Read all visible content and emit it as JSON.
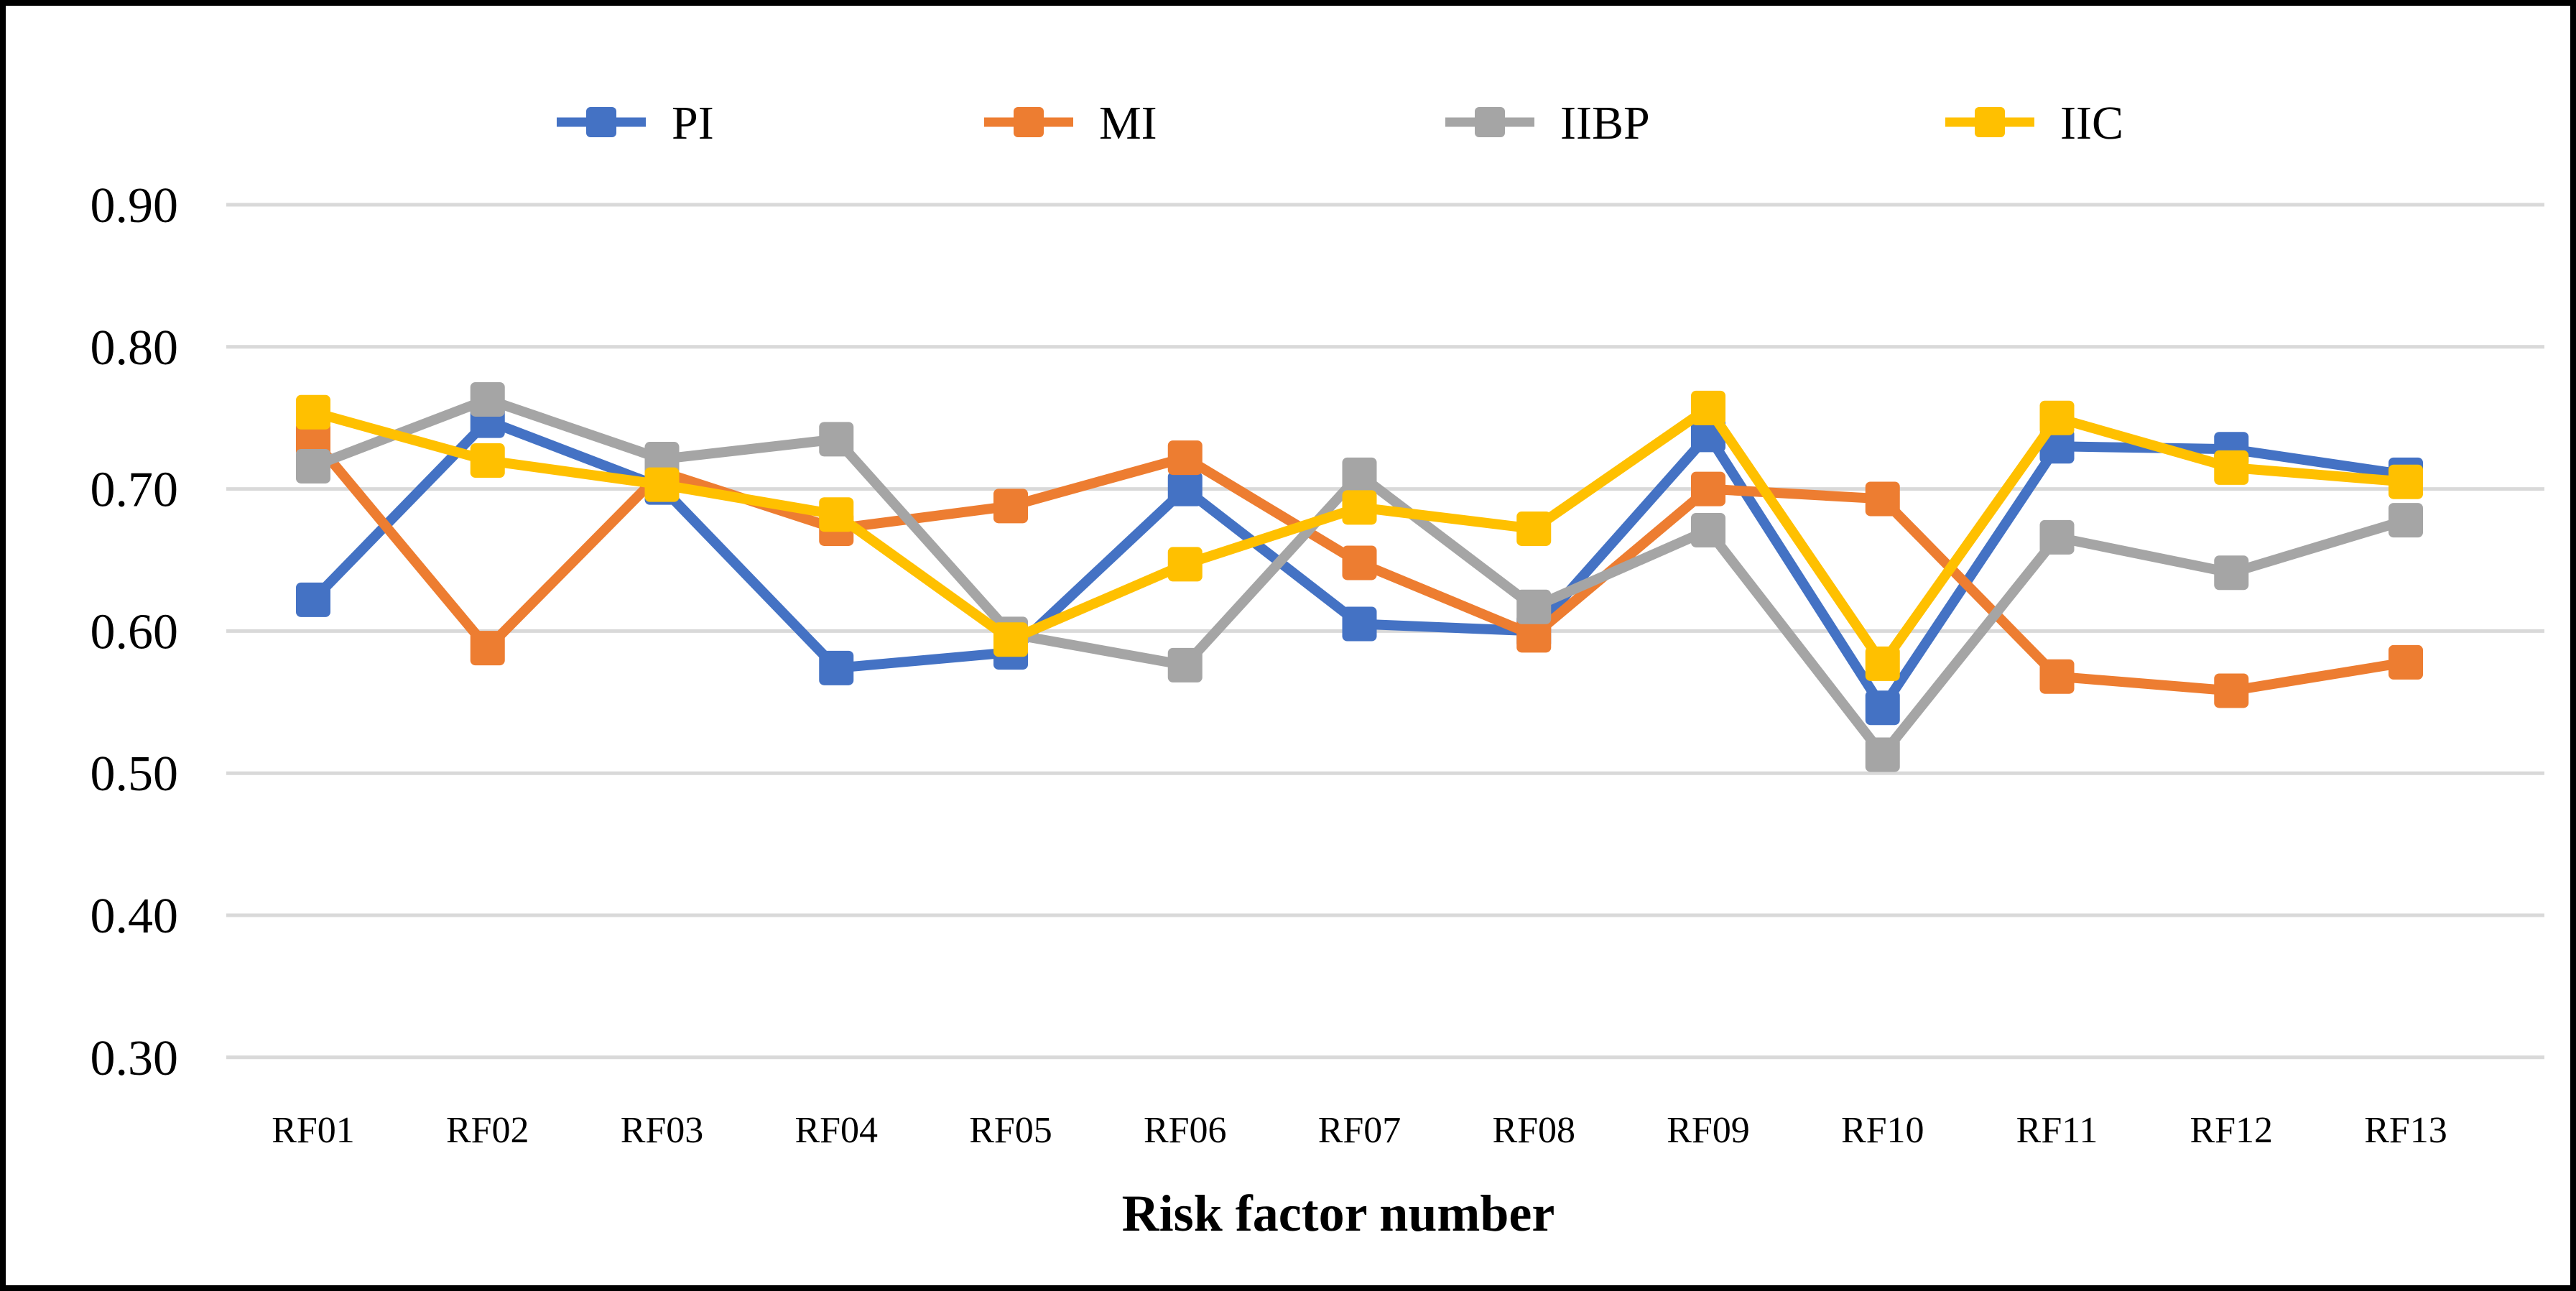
{
  "chart_data": {
    "type": "line",
    "title": "",
    "xlabel": "Risk factor number",
    "ylabel": "",
    "categories": [
      "RF01",
      "RF02",
      "RF03",
      "RF04",
      "RF05",
      "RF06",
      "RF07",
      "RF08",
      "RF09",
      "RF10",
      "RF11",
      "RF12",
      "RF13"
    ],
    "series": [
      {
        "name": "PI",
        "color": "#4472C4",
        "values": [
          0.622,
          0.748,
          0.701,
          0.574,
          0.585,
          0.7,
          0.605,
          0.6,
          0.738,
          0.546,
          0.73,
          0.728,
          0.71
        ]
      },
      {
        "name": "MI",
        "color": "#ED7D31",
        "values": [
          0.735,
          0.588,
          0.712,
          0.672,
          0.688,
          0.722,
          0.648,
          0.597,
          0.7,
          0.693,
          0.568,
          0.558,
          0.578
        ]
      },
      {
        "name": "IIBP",
        "color": "#A5A5A5",
        "values": [
          0.716,
          0.763,
          0.721,
          0.735,
          0.598,
          0.576,
          0.71,
          0.617,
          0.671,
          0.513,
          0.666,
          0.641,
          0.678
        ]
      },
      {
        "name": "IIC",
        "color": "#FFC000",
        "values": [
          0.754,
          0.72,
          0.703,
          0.682,
          0.594,
          0.647,
          0.687,
          0.672,
          0.757,
          0.577,
          0.75,
          0.715,
          0.705
        ]
      }
    ],
    "y_axis": {
      "min": 0.3,
      "max": 0.9,
      "tick_step": 0.1,
      "tick_labels": [
        "0.90",
        "0.80",
        "0.70",
        "0.60",
        "0.50",
        "0.40",
        "0.30"
      ]
    },
    "x_axis": {
      "label": "Risk factor number"
    },
    "grid": true,
    "legend_position": "top",
    "legend_entries": [
      "PI",
      "MI",
      "IIBP",
      "IIC"
    ],
    "colors": {
      "gridline": "#D9D9D9",
      "text": "#000000",
      "background": "#FFFFFF",
      "frame_border": "#000000"
    }
  }
}
